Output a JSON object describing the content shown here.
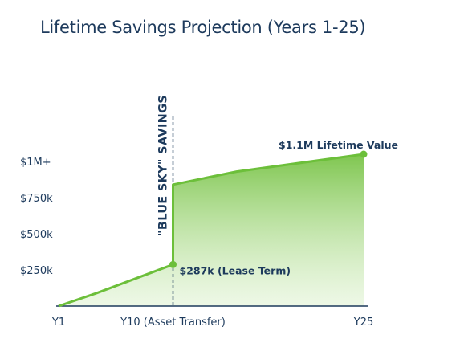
{
  "chart_data": {
    "type": "area",
    "title": "Lifetime Savings Projection (Years 1-25)",
    "xlabel": "",
    "ylabel": "",
    "x_range": [
      1,
      25
    ],
    "ylim": [
      0,
      1150000
    ],
    "x_ticks": [
      {
        "x": 1,
        "label": "Y1"
      },
      {
        "x": 10,
        "label": "Y10 (Asset Transfer)"
      },
      {
        "x": 25,
        "label": "Y25"
      }
    ],
    "y_ticks": [
      {
        "y": 250000,
        "label": "$250k"
      },
      {
        "y": 500000,
        "label": "$500k"
      },
      {
        "y": 750000,
        "label": "$750k"
      },
      {
        "y": 1000000,
        "label": "$1M+"
      }
    ],
    "series": [
      {
        "values_x": [
          1,
          4,
          10,
          10,
          15,
          25
        ],
        "values_y": [
          0,
          90000,
          287000,
          840000,
          930000,
          1050000
        ],
        "color": "#6cbf3a"
      }
    ],
    "markers": [
      {
        "x": 10,
        "y": 287000
      },
      {
        "x": 25,
        "y": 1050000
      }
    ],
    "annotations": [
      {
        "x": 10,
        "y": 287000,
        "text": "$287k (Lease Term)"
      },
      {
        "x": 25,
        "y": 1050000,
        "text": "$1.1M Lifetime Value"
      }
    ],
    "vertical_line": {
      "x": 10,
      "label": "\"BLUE SKY\" SAVINGS",
      "style": "dashed"
    },
    "grid": false,
    "legend": "none"
  }
}
